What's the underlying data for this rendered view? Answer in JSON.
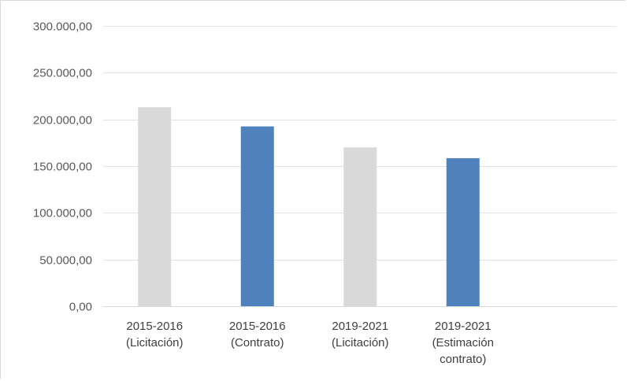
{
  "chart_data": {
    "type": "bar",
    "categories": [
      [
        "2015-2016",
        "(Licitación)"
      ],
      [
        "2015-2016",
        "(Contrato)"
      ],
      [
        "2019-2021",
        "(Licitación)"
      ],
      [
        "2019-2021",
        "(Estimación",
        "contrato)"
      ]
    ],
    "values": [
      213000,
      192500,
      170000,
      158500
    ],
    "bar_colors": [
      "#d9d9d9",
      "#4f81bd",
      "#d9d9d9",
      "#4f81bd"
    ],
    "ylim": [
      0,
      300000
    ],
    "yticks": [
      0,
      50000,
      100000,
      150000,
      200000,
      250000,
      300000
    ],
    "ytick_labels": [
      "0,00",
      "50.000,00",
      "100.000,00",
      "150.000,00",
      "200.000,00",
      "250.000,00",
      "300.000,00"
    ],
    "grid": true,
    "legend": false
  }
}
